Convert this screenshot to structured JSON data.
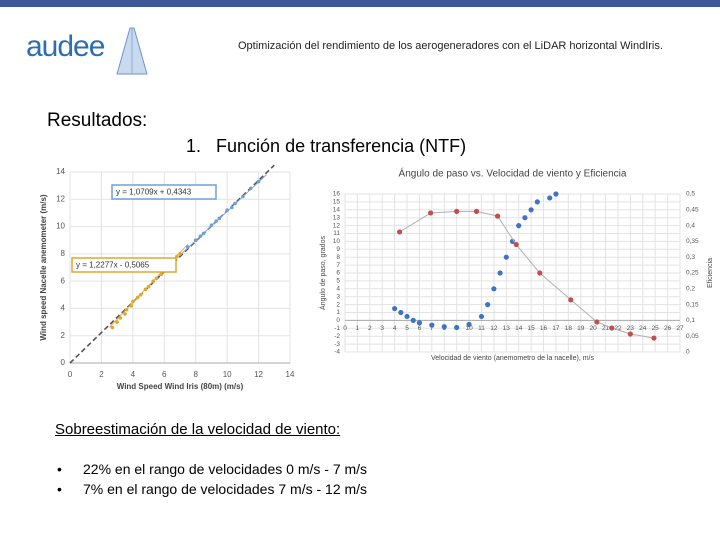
{
  "header": {
    "logo": "audee",
    "title": "Optimización del rendimiento de los aerogeneradores con el LiDAR horizontal WindIris."
  },
  "section": "Resultados:",
  "subsection": {
    "number": "1.",
    "text": "Función de transferencia (NTF)"
  },
  "chart_data": [
    {
      "type": "scatter",
      "x_label": "Wind Speed Wind Iris (80m) (m/s)",
      "y_label": "Wind speed Nacelle anemometer (m/s)",
      "xlim": [
        0,
        14
      ],
      "ylim": [
        0,
        14
      ],
      "xticks": [
        0,
        2,
        4,
        6,
        8,
        10,
        12,
        14
      ],
      "yticks": [
        0,
        2,
        4,
        6,
        8,
        10,
        12,
        14
      ],
      "grid": true,
      "series": [
        {
          "color": "#e0a830",
          "x": [
            2.7,
            3.0,
            3.2,
            3.5,
            3.6,
            3.9,
            4.0,
            4.3,
            4.5,
            4.8,
            5.0,
            5.3,
            5.5,
            5.8,
            6.0,
            6.3,
            6.5,
            6.8,
            7.0
          ],
          "y": [
            2.6,
            3.0,
            3.3,
            3.6,
            3.9,
            4.2,
            4.5,
            4.8,
            5.0,
            5.4,
            5.6,
            6.0,
            6.2,
            6.5,
            6.8,
            7.2,
            7.4,
            7.8,
            8.0
          ]
        },
        {
          "color": "#6f9fd8",
          "x": [
            7.5,
            8.0,
            8.3,
            8.5,
            9.0,
            9.3,
            9.5,
            10.0,
            10.3,
            10.5,
            11.0,
            11.5,
            12.0
          ],
          "y": [
            8.5,
            9.0,
            9.3,
            9.5,
            10.1,
            10.4,
            10.6,
            11.2,
            11.4,
            11.7,
            12.2,
            12.8,
            13.3
          ]
        }
      ],
      "lines": [
        {
          "color": "#555555",
          "dashed": true,
          "x": [
            0,
            13
          ],
          "y": [
            0,
            14.5
          ]
        },
        {
          "color": "#7fa7d9",
          "dashed": false,
          "x": [
            7,
            12.5
          ],
          "y": [
            7.9,
            13.8
          ]
        },
        {
          "color": "#e0b040",
          "dashed": false,
          "x": [
            2.5,
            7.5
          ],
          "y": [
            2.6,
            8.7
          ]
        }
      ],
      "annotations": [
        {
          "text": "y = 1,0709x + 0,4343",
          "color": "#6f9fd8"
        },
        {
          "text": "y = 1,2277x - 0,5065",
          "color": "#e0a830"
        }
      ]
    },
    {
      "type": "scatter",
      "title": "Ángulo de paso vs. Velocidad de viento y Eficiencia",
      "x_label": "Velocidad de viento (anemometro de la nacelle), m/s",
      "y_label": "Ángulo de paso, grados",
      "y2_label": "Eficiencia",
      "xlim": [
        0,
        27
      ],
      "ylim": [
        -4,
        16
      ],
      "y2lim": [
        0,
        0.5
      ],
      "xticks": [
        0,
        1,
        2,
        3,
        4,
        5,
        6,
        7,
        8,
        9,
        10,
        11,
        12,
        13,
        14,
        15,
        16,
        17,
        18,
        19,
        20,
        21,
        22,
        23,
        24,
        25,
        26,
        27
      ],
      "yticks": [
        -4,
        -3,
        -2,
        -1,
        0,
        1,
        2,
        3,
        4,
        5,
        6,
        7,
        8,
        9,
        10,
        11,
        12,
        13,
        14,
        15,
        16
      ],
      "y2ticks": [
        0,
        {
          "value": 0.05,
          "label": "0,05"
        },
        {
          "value": 0.1,
          "label": "0,1"
        },
        {
          "value": 0.15,
          "label": "0,15"
        },
        {
          "value": 0.2,
          "label": "0,2"
        },
        {
          "value": 0.25,
          "label": "0,25"
        },
        {
          "value": 0.3,
          "label": "0,3"
        },
        {
          "value": 0.35,
          "label": "0,35"
        },
        {
          "value": 0.4,
          "label": "0,4"
        },
        {
          "value": 0.45,
          "label": "0,45"
        },
        {
          "value": 0.5,
          "label": "0,5"
        }
      ],
      "grid": true,
      "series": [
        {
          "color": "#3f74c0",
          "line": false,
          "x": [
            4,
            4.5,
            5,
            5.5,
            6,
            7,
            8,
            9,
            10,
            11,
            11.5,
            12,
            12.5,
            13,
            13.5,
            14,
            14.5,
            15,
            15.5,
            16.5,
            17
          ],
          "y": [
            1.5,
            1,
            0.5,
            0,
            -0.3,
            -0.6,
            -0.8,
            -0.9,
            -0.5,
            0.5,
            2,
            4,
            6,
            8,
            10,
            12,
            13,
            14,
            15,
            15.5,
            16
          ]
        },
        {
          "color": "#c0504d",
          "line": true,
          "axis": "y2",
          "x": [
            4.4,
            6.9,
            9,
            10.6,
            12.3,
            13.8,
            15.7,
            18.2,
            20.3,
            21.5,
            23,
            24.9
          ],
          "y": [
            0.38,
            0.44,
            0.445,
            0.445,
            0.43,
            0.34,
            0.25,
            0.165,
            0.095,
            0.076,
            0.057,
            0.044
          ]
        }
      ]
    }
  ],
  "notes": {
    "heading": "Sobreestimación de la velocidad de viento:",
    "bullets": [
      "22% en el rango de velocidades 0 m/s - 7 m/s",
      "7% en el rango de velocidades 7 m/s - 12 m/s"
    ]
  }
}
